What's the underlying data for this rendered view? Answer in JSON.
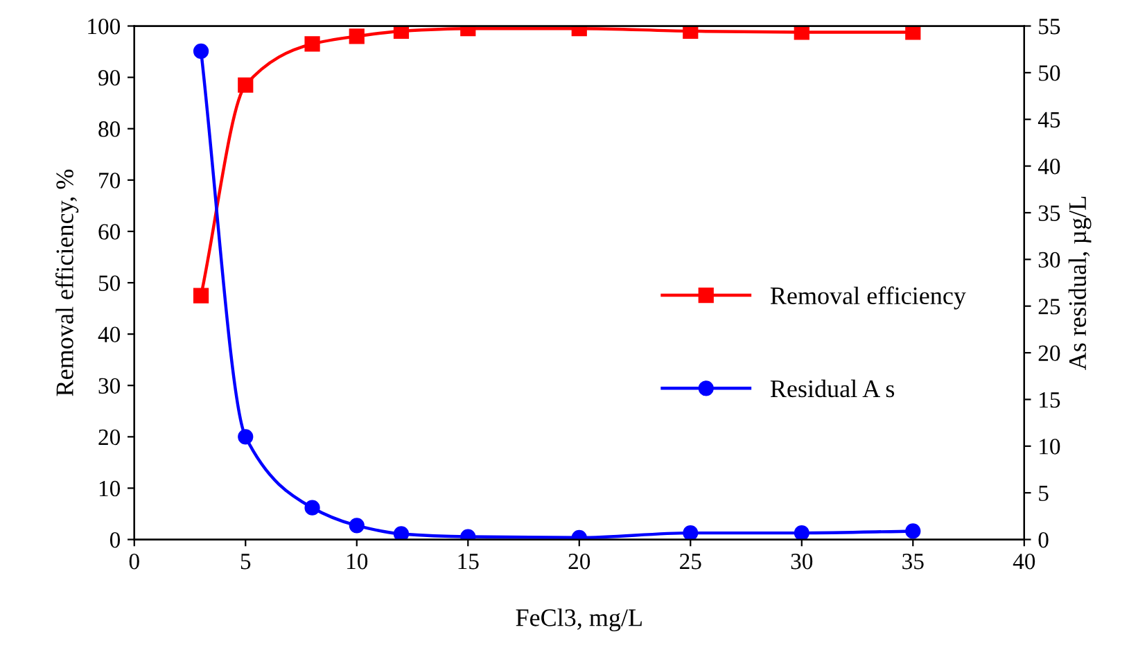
{
  "chart_data": {
    "type": "line",
    "xlabel": "FeCl3, mg/L",
    "ylabel": "Removal efficiency, %",
    "y2label": "As residual, µg/L",
    "xlim": [
      0,
      40
    ],
    "xticks": [
      0,
      5,
      10,
      15,
      20,
      25,
      30,
      35,
      40
    ],
    "ylim": [
      0,
      100
    ],
    "yticks": [
      0,
      10,
      20,
      30,
      40,
      50,
      60,
      70,
      80,
      90,
      100
    ],
    "y2lim": [
      0,
      55
    ],
    "y2ticks": [
      0,
      5,
      10,
      15,
      20,
      25,
      30,
      35,
      40,
      45,
      50,
      55
    ],
    "grid": false,
    "legend": "right",
    "x": [
      3,
      5,
      8,
      10,
      12,
      15,
      20,
      25,
      30,
      35
    ],
    "series": [
      {
        "name": "Removal efficiency",
        "color": "#ff0000",
        "marker": "square",
        "values": [
          47.5,
          88.5,
          96.5,
          98,
          99,
          99.5,
          99.5,
          99,
          98.8,
          98.8
        ]
      },
      {
        "name": "Residual A s",
        "color": "#0000ff",
        "marker": "circle",
        "axis": "y2",
        "values": [
          52.3,
          11.0,
          3.4,
          1.5,
          0.6,
          0.3,
          0.2,
          0.7,
          0.7,
          0.9
        ]
      }
    ]
  }
}
